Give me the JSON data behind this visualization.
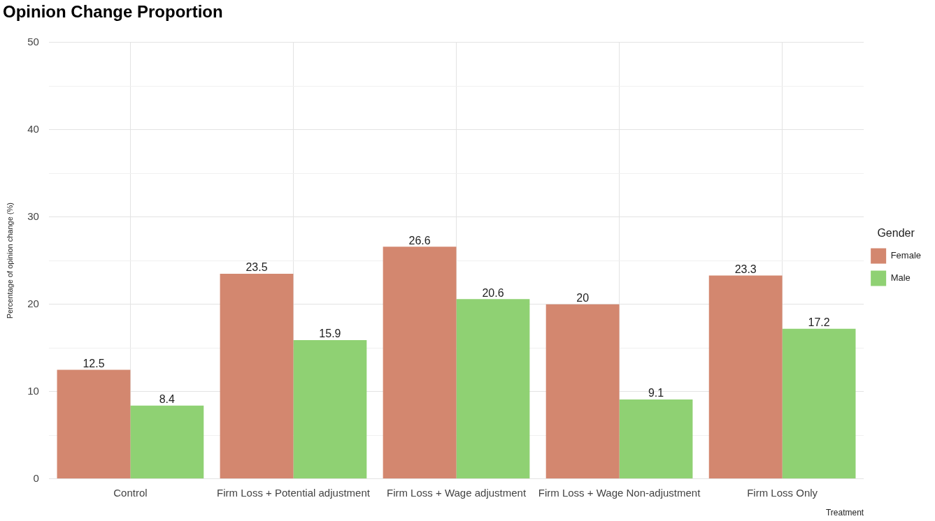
{
  "chart_data": {
    "type": "bar",
    "title": "Opinion Change Proportion",
    "xlabel": "Treatment",
    "ylabel": "Percentage of opinion change (%)",
    "legend_title": "Gender",
    "categories": [
      "Control",
      "Firm Loss + Potential adjustment",
      "Firm Loss + Wage adjustment",
      "Firm Loss + Wage Non-adjustment",
      "Firm Loss Only"
    ],
    "series": [
      {
        "name": "Female",
        "color": "#d3876f",
        "values": [
          12.5,
          23.5,
          26.6,
          20,
          23.3
        ]
      },
      {
        "name": "Male",
        "color": "#8fd173",
        "values": [
          8.4,
          15.9,
          20.6,
          9.1,
          17.2
        ]
      }
    ],
    "ylim": [
      0,
      50
    ],
    "yticks": [
      0,
      {
        "value": 5,
        "label": null
      },
      10,
      {
        "value": 15,
        "label": null
      },
      20,
      {
        "value": 25,
        "label": null
      },
      30,
      {
        "value": 35,
        "label": null
      },
      40,
      {
        "value": 45,
        "label": null
      },
      50
    ],
    "grid": true,
    "legend": "right",
    "data_labels": true
  }
}
